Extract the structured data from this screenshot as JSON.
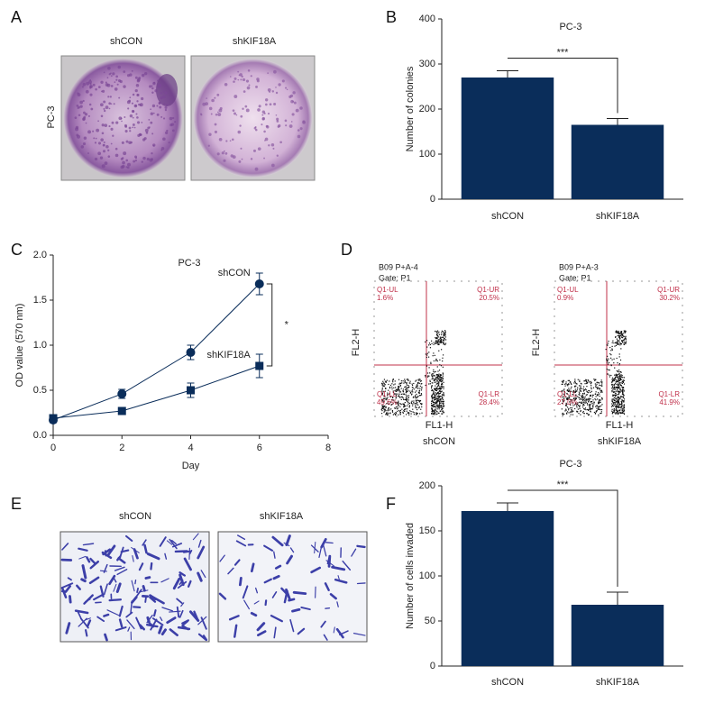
{
  "panel_labels": [
    "A",
    "B",
    "C",
    "D",
    "E",
    "F"
  ],
  "panel_a": {
    "row_label": "PC-3",
    "columns": [
      "shCON",
      "shKIF18A"
    ]
  },
  "panel_d": {
    "plots": [
      {
        "title": "B09 P+A-4",
        "gate": "Gate: P1",
        "x_label": "FL1-H",
        "y_label": "FL2-H",
        "caption": "shCON",
        "quadrants": [
          {
            "name": "Q1-UL",
            "value": "1.6%"
          },
          {
            "name": "Q1-UR",
            "value": "20.5%"
          },
          {
            "name": "Q1-LL",
            "value": "49.6%"
          },
          {
            "name": "Q1-LR",
            "value": "28.4%"
          }
        ]
      },
      {
        "title": "B09 P+A-3",
        "gate": "Gate: P1",
        "x_label": "FL1-H",
        "y_label": "FL2-H",
        "caption": "shKIF18A",
        "quadrants": [
          {
            "name": "Q1-UL",
            "value": "0.9%"
          },
          {
            "name": "Q1-UR",
            "value": "30.2%"
          },
          {
            "name": "Q1-LL",
            "value": "27.0%"
          },
          {
            "name": "Q1-LR",
            "value": "41.9%"
          }
        ]
      }
    ]
  },
  "panel_e": {
    "columns": [
      "shCON",
      "shKIF18A"
    ]
  },
  "chart_data": [
    {
      "type": "bar",
      "title": "PC-3",
      "y_label": "Number of colonies",
      "categories": [
        "shCON",
        "shKIF18A"
      ],
      "values": [
        270,
        165
      ],
      "errors": [
        15,
        14
      ],
      "color": "#0a2d5a",
      "significance": "***",
      "ylim": [
        0,
        400
      ],
      "yticks": [
        0,
        100,
        200,
        300,
        400
      ]
    },
    {
      "type": "line",
      "title": "PC-3",
      "x_label": "Day",
      "y_label": "OD value (570 nm)",
      "x": [
        0,
        2,
        4,
        6
      ],
      "series": [
        {
          "name": "shCON",
          "color": "#0a2d5a",
          "marker": "circle",
          "values": [
            0.17,
            0.46,
            0.92,
            1.68
          ],
          "errors": [
            0.03,
            0.05,
            0.08,
            0.12
          ]
        },
        {
          "name": "shKIF18A",
          "color": "#0a2d5a",
          "marker": "square",
          "values": [
            0.19,
            0.27,
            0.5,
            0.77
          ],
          "errors": [
            0.03,
            0.04,
            0.08,
            0.13
          ]
        }
      ],
      "significance": "*",
      "xlim": [
        0,
        8
      ],
      "xticks": [
        0,
        2,
        4,
        6,
        8
      ],
      "ylim": [
        0,
        2
      ],
      "yticks": [
        {
          "value": 0,
          "label": "0.0"
        },
        0.5,
        {
          "value": 1,
          "label": "1.0"
        },
        1.5,
        {
          "value": 2,
          "label": "2.0"
        }
      ]
    },
    {
      "type": "bar",
      "title": "PC-3",
      "y_label": "Number of cells invaded",
      "categories": [
        "shCON",
        "shKIF18A"
      ],
      "values": [
        172,
        68
      ],
      "errors": [
        9,
        14
      ],
      "color": "#0a2d5a",
      "significance": "***",
      "ylim": [
        0,
        200
      ],
      "yticks": [
        0,
        50,
        100,
        150,
        200
      ]
    }
  ]
}
